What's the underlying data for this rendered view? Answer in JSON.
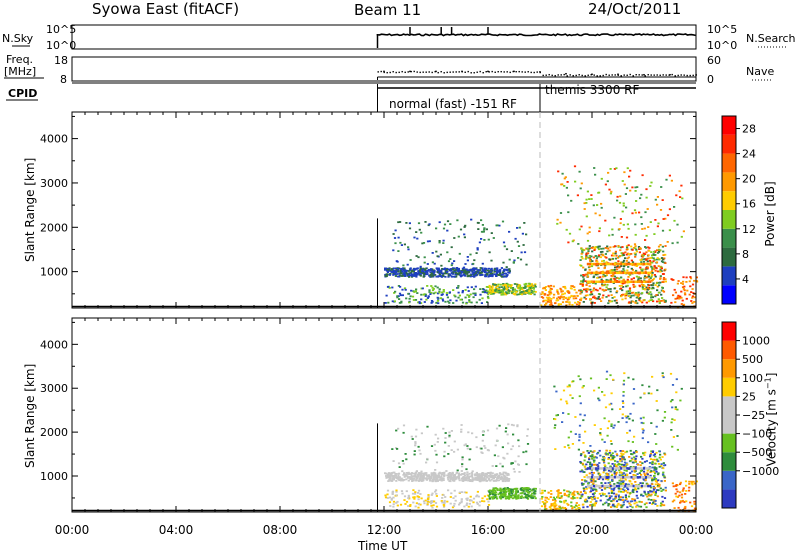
{
  "header": {
    "station": "Syowa East (fitACF)",
    "beam": "Beam 11",
    "date": "24/Oct/2011"
  },
  "colors": {
    "power_scale": [
      "#0000ff",
      "#1e3fbf",
      "#2d6b3f",
      "#3a8f4a",
      "#7fcc20",
      "#ffcc00",
      "#ff9900",
      "#ff6600",
      "#ff2a00",
      "#ff0000"
    ],
    "velocity_scale": [
      "#2d3ac0",
      "#3a66c8",
      "#2e8c3c",
      "#66c020",
      "#c8c8c8",
      "#c8c8c8",
      "#ffcc00",
      "#ff9900",
      "#ff5a00",
      "#ff0000"
    ]
  },
  "chart_data": [
    {
      "type": "line",
      "name": "nsky_nsearch_panel",
      "left_label": "N.Sky",
      "right_label": "N.Search",
      "left_ticks": [
        "10^5",
        "10^0"
      ],
      "right_ticks": [
        "10^5",
        "10^0"
      ],
      "x_range": [
        0,
        24
      ],
      "data_start_hour": 11.75,
      "spike_hours": [
        13.0,
        14.2,
        14.6,
        16.0
      ]
    },
    {
      "type": "scatter",
      "name": "freq_nave_panel",
      "left_label_line1": "Freq.",
      "left_label_line2": "[MHz]",
      "right_label": "Nave",
      "left_ticks": [
        18,
        8
      ],
      "right_ticks": [
        60,
        0
      ],
      "x_range": [
        0,
        24
      ],
      "freq_points": [
        [
          12.0,
          12.0
        ],
        [
          13.0,
          12.0
        ],
        [
          14.0,
          12.0
        ],
        [
          15.0,
          12.0
        ],
        [
          16.0,
          12.0
        ],
        [
          17.0,
          12.0
        ],
        [
          18.0,
          11.8
        ],
        [
          19.0,
          11.0
        ],
        [
          20.0,
          10.8
        ],
        [
          21.0,
          10.8
        ],
        [
          22.0,
          10.6
        ],
        [
          23.0,
          10.6
        ],
        [
          24.0,
          10.5
        ]
      ]
    },
    {
      "type": "table",
      "name": "cpid_strip",
      "label": "CPID",
      "segments": [
        {
          "start": 11.75,
          "end": 18.0,
          "label": "normal (fast) -151 RF"
        },
        {
          "start": 18.0,
          "end": 24.0,
          "label": "themis 3300 RF"
        }
      ]
    },
    {
      "type": "heatmap",
      "name": "power_panel",
      "ylabel": "Slant Range [km]",
      "yticks": [
        1000,
        2000,
        3000,
        4000
      ],
      "ylim": [
        180,
        4600
      ],
      "xlim": [
        0,
        24
      ],
      "colorbar_label": "Power [dB]",
      "colorbar_ticks": [
        4,
        8,
        12,
        16,
        20,
        24,
        28
      ],
      "colorbar_range": [
        0,
        30
      ]
    },
    {
      "type": "heatmap",
      "name": "velocity_panel",
      "ylabel": "Slant Range [km]",
      "yticks": [
        1000,
        2000,
        3000,
        4000
      ],
      "ylim": [
        180,
        4600
      ],
      "xlim": [
        0,
        24
      ],
      "colorbar_label": "Velocity [m s^-1]",
      "colorbar_ticks": [
        "1000",
        "500",
        "100",
        "25",
        "−25",
        "−100",
        "−500",
        "−1000"
      ]
    },
    {
      "type": "line",
      "name": "time_axis",
      "xlabel": "Time UT",
      "xtick_labels": [
        "00:00",
        "04:00",
        "08:00",
        "12:00",
        "16:00",
        "20:00",
        "00:00"
      ],
      "xtick_hours": [
        0,
        4,
        8,
        12,
        16,
        20,
        24
      ]
    }
  ]
}
